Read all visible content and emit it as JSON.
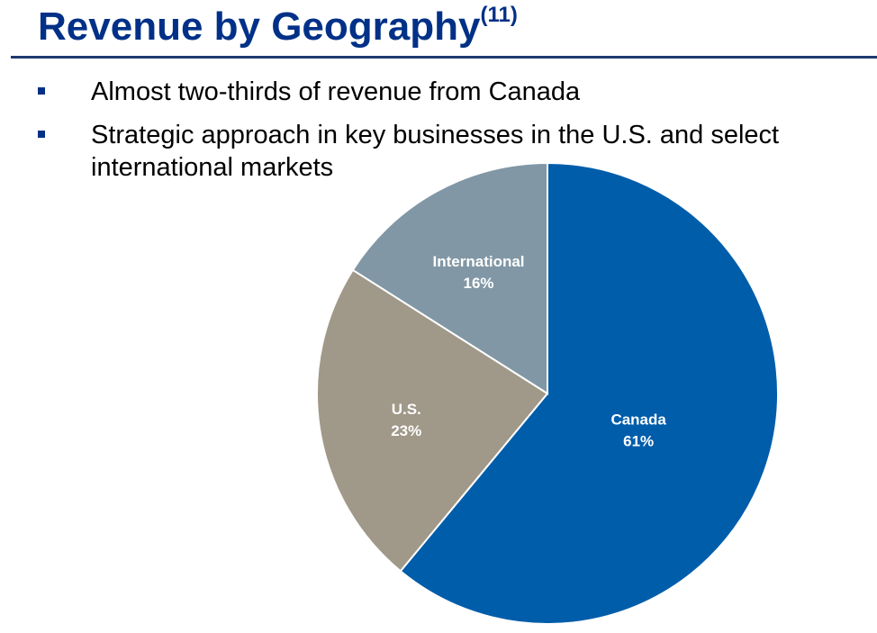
{
  "slide": {
    "title": "Revenue by Geography",
    "title_superscript": "(11)",
    "bullets": [
      "Almost two-thirds of revenue from Canada",
      "Strategic approach in key businesses in the U.S. and select international markets"
    ]
  },
  "colors": {
    "title": "#003087",
    "rule": "#1f3a6e",
    "bullet_marker": "#003087"
  },
  "chart_data": {
    "type": "pie",
    "title": "",
    "slices": [
      {
        "label": "Canada",
        "value": 61,
        "value_label": "61%",
        "color": "#005DAA"
      },
      {
        "label": "U.S.",
        "value": 23,
        "value_label": "23%",
        "color": "#A09888"
      },
      {
        "label": "International",
        "value": 16,
        "value_label": "16%",
        "color": "#8197A5"
      }
    ],
    "start_angle_deg": 0,
    "direction": "clockwise",
    "legend": "none"
  }
}
